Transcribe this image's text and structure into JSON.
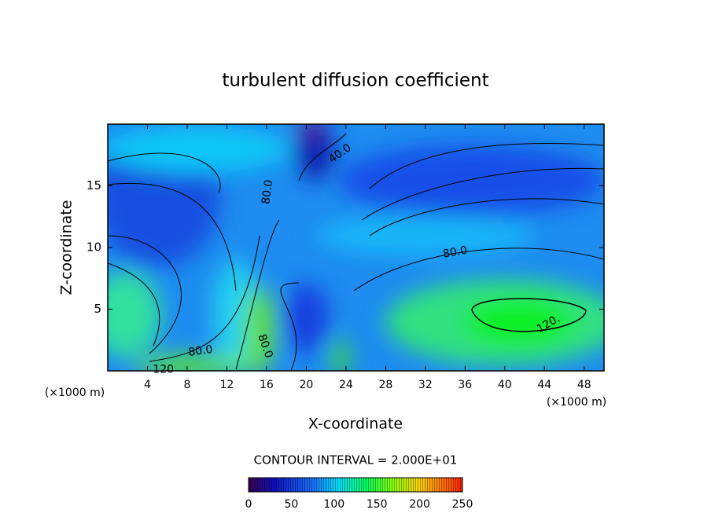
{
  "chart_data": {
    "type": "contour",
    "title": "turbulent diffusion coefficient",
    "x_label": "X-coordinate",
    "y_label": "Z-coordinate",
    "x_unit_left": "(×1000 m)",
    "x_unit_right": "(×1000 m)",
    "xlim": [
      0,
      50
    ],
    "xticks": [
      4,
      8,
      12,
      16,
      20,
      24,
      28,
      32,
      36,
      40,
      44,
      48
    ],
    "ylim": [
      0,
      20
    ],
    "yticks": [
      5,
      10,
      15
    ],
    "contour_interval": "CONTOUR INTERVAL = 2.000E+01",
    "contour_labels": [
      {
        "value": 40,
        "label": "40.0",
        "x": 23.4,
        "y": 17.6
      },
      {
        "value": 80,
        "label": "80.0",
        "x": 16.1,
        "y": 14.5
      },
      {
        "value": 80,
        "label": "80.0",
        "x": 35.0,
        "y": 9.6
      },
      {
        "value": 80,
        "label": "80.0",
        "x": 9.35,
        "y": 1.6
      },
      {
        "value": 80,
        "label": "80.0",
        "x": 15.85,
        "y": 2.0
      },
      {
        "value": 120,
        "label": "120.",
        "x": 44.4,
        "y": 3.8
      },
      {
        "value": 120,
        "label": "120",
        "x": 5.6,
        "y": 0.1
      }
    ],
    "colorbar": {
      "lim": [
        0,
        250
      ],
      "ticks": [
        0,
        50,
        100,
        150,
        200,
        250
      ]
    }
  }
}
